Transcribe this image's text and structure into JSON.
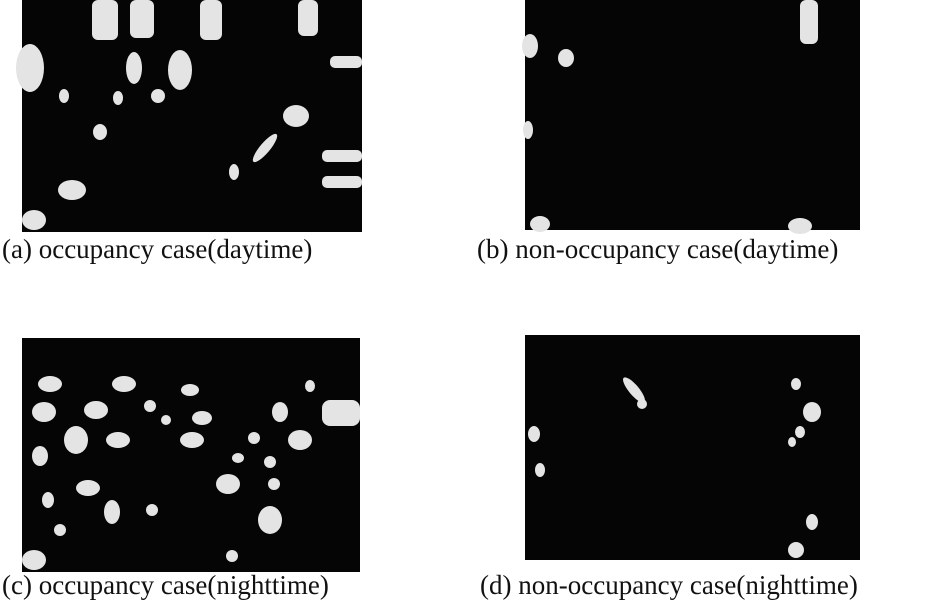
{
  "panels": [
    {
      "caption": "(a) occupancy case(daytime)"
    },
    {
      "caption": "(b) non-occupancy case(daytime)"
    },
    {
      "caption": "(c) occupancy case(nighttime)"
    },
    {
      "caption": "(d) non-occupancy case(nighttime)"
    }
  ]
}
